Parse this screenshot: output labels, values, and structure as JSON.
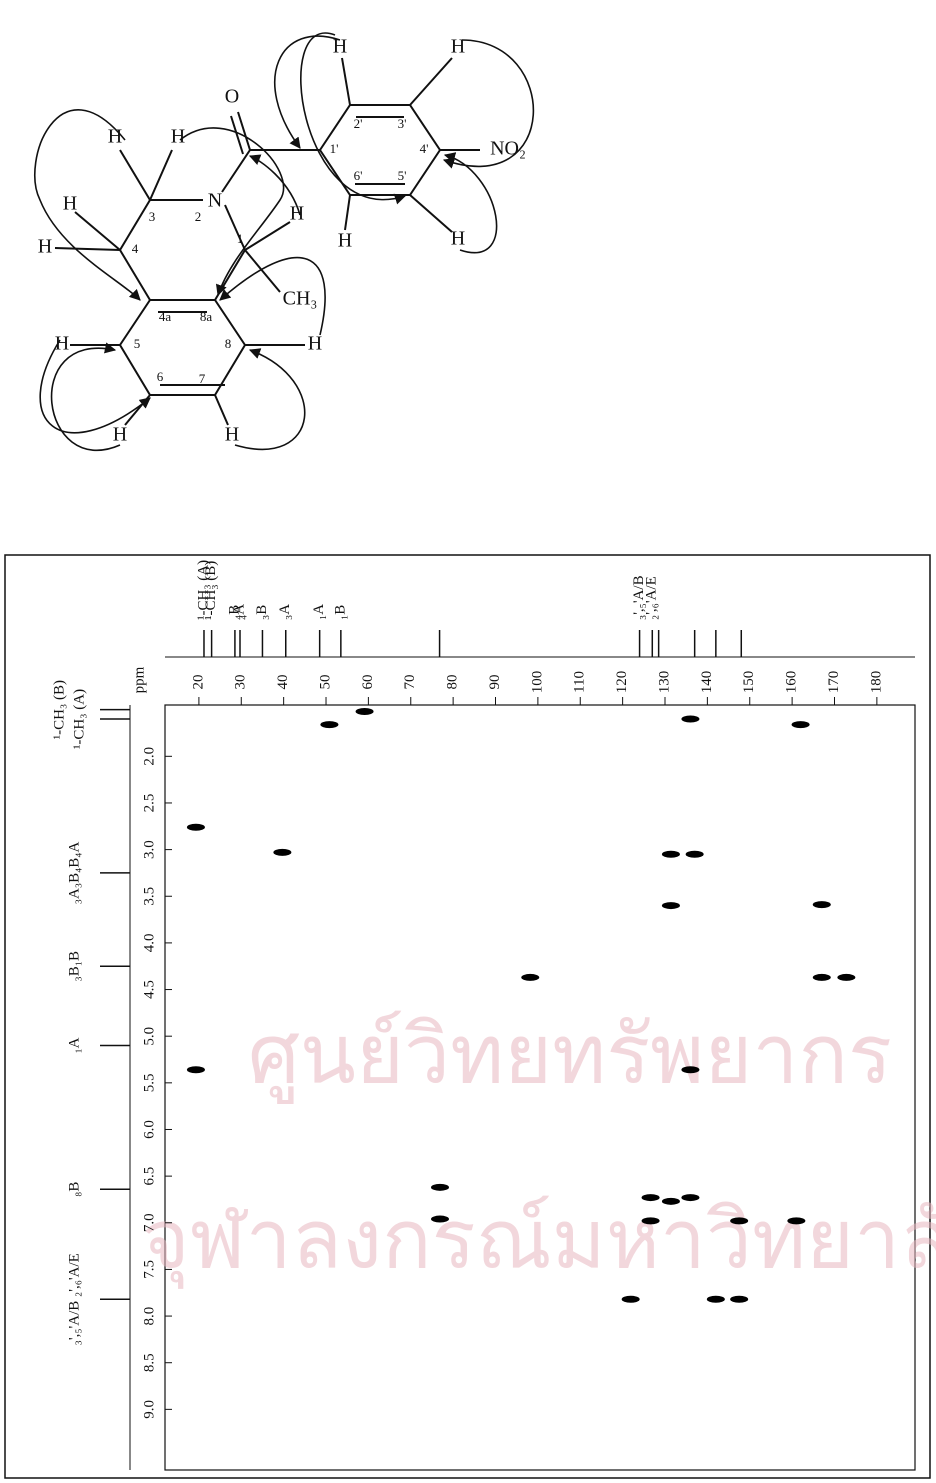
{
  "watermark": {
    "lines": [
      "ศูนย์วิทยทรัพยากร",
      "จุฬาลงกรณ์มหาวิทยาลัย"
    ]
  },
  "structure": {
    "labels": [
      "O",
      "N",
      "NO₂",
      "CH₃",
      "H",
      "H",
      "H",
      "H",
      "H",
      "H",
      "H",
      "H",
      "H",
      "H",
      "H",
      "H",
      "H",
      "1",
      "2",
      "3",
      "4",
      "4a",
      "8a",
      "5",
      "6",
      "7",
      "8",
      "1'",
      "2'",
      "3'",
      "4'",
      "5'",
      "6'"
    ]
  },
  "chart_data": {
    "type": "scatter",
    "x_label": "ppm",
    "x": [
      19.3,
      50.8,
      59.1,
      136,
      162,
      39.7,
      131.4,
      137,
      131.4,
      167,
      98.2,
      167,
      172.8,
      19.3,
      136,
      76.9,
      76.9,
      126.6,
      131.4,
      136,
      126.6,
      147.5,
      161,
      121.9,
      142,
      147.5
    ],
    "y": [
      2.76,
      1.66,
      1.52,
      1.6,
      1.66,
      3.03,
      3.05,
      3.05,
      3.6,
      3.59,
      4.37,
      4.37,
      4.37,
      5.36,
      5.36,
      6.62,
      6.96,
      6.73,
      6.77,
      6.73,
      6.98,
      6.98,
      6.98,
      7.82,
      7.82,
      7.82
    ],
    "color": "#000000",
    "xlim": [
      12,
      189
    ],
    "ylim": [
      1.45,
      9.65
    ],
    "xticks": [
      20,
      30,
      40,
      50,
      60,
      70,
      80,
      90,
      100,
      110,
      120,
      130,
      140,
      150,
      160,
      170,
      180
    ],
    "yticks": [
      {
        "value": 2,
        "label": "2.0"
      },
      2.5,
      {
        "value": 3,
        "label": "3.0"
      },
      3.5,
      {
        "value": 4,
        "label": "4.0"
      },
      4.5,
      {
        "value": 5,
        "label": "5.0"
      },
      5.5,
      {
        "value": 6,
        "label": "6.0"
      },
      6.5,
      {
        "value": 7,
        "label": "7.0"
      },
      7.5,
      {
        "value": 8,
        "label": "8.0"
      },
      8.5,
      {
        "value": 9,
        "label": "9.0"
      }
    ],
    "carbon_peaks": {
      "labels": [
        "¹-CH₃ (A)",
        "¹-CH₃ (B)",
        "₄B",
        "₄A",
        "₃B",
        "₃A",
        "₁A",
        "₁B",
        null,
        "₃',₅'A/B",
        "₂',₆'A/E",
        null,
        null,
        null,
        null
      ],
      "x": [
        21.2,
        23,
        28.5,
        29.7,
        35,
        40.5,
        48.5,
        53.5,
        76.8,
        124,
        127,
        128.5,
        137,
        142,
        148
      ]
    },
    "proton_peaks": {
      "labels": [
        "¹-CH₃ (B)",
        "¹-CH₃ (A)",
        "₃A₃B₄B₄A",
        "₃B₁B",
        "₁A",
        "₈B",
        "₃',₅'A/B ₂',₆'A/E"
      ],
      "y": [
        1.5,
        1.6,
        3.25,
        4.25,
        5.1,
        6.64,
        7.82
      ]
    }
  }
}
